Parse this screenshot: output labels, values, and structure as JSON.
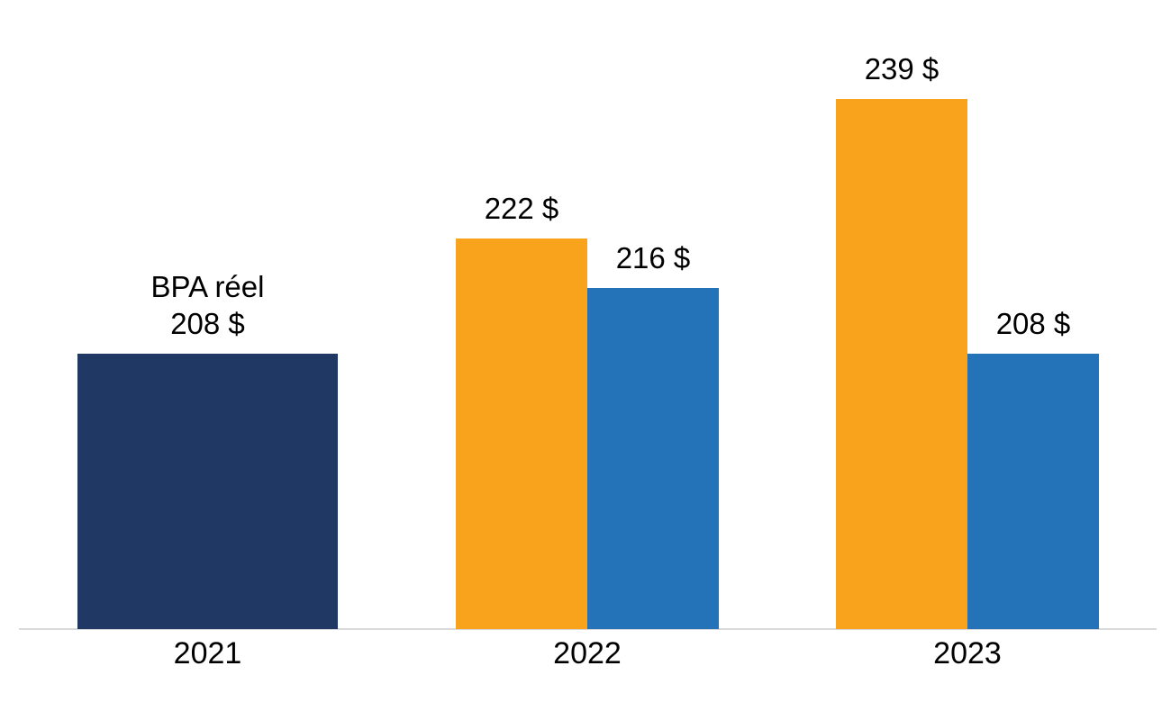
{
  "chart_data": {
    "type": "bar",
    "title": "",
    "categories": [
      "2021",
      "2022",
      "2023"
    ],
    "series": [
      {
        "name": "bpa-reel",
        "color": "#1f3864",
        "values": [
          208,
          null,
          null
        ]
      },
      {
        "name": "estimation-orange",
        "color": "#f9a21c",
        "values": [
          null,
          222,
          239
        ]
      },
      {
        "name": "estimation-bleu",
        "color": "#2472b8",
        "values": [
          null,
          216,
          208
        ]
      }
    ],
    "bars": [
      {
        "category": "2021",
        "series": "bpa-reel",
        "value": 208,
        "color": "#1f3864",
        "label_lines": [
          "BPA réel",
          "208 $"
        ]
      },
      {
        "category": "2022",
        "series": "estimation-orange",
        "value": 222,
        "color": "#f9a21c",
        "label_lines": [
          "222 $"
        ]
      },
      {
        "category": "2022",
        "series": "estimation-bleu",
        "value": 216,
        "color": "#2472b8",
        "label_lines": [
          "216 $"
        ]
      },
      {
        "category": "2023",
        "series": "estimation-orange",
        "value": 239,
        "color": "#f9a21c",
        "label_lines": [
          "239 $"
        ]
      },
      {
        "category": "2023",
        "series": "estimation-bleu",
        "value": 208,
        "color": "#2472b8",
        "label_lines": [
          "208 $"
        ]
      }
    ],
    "annotation_text": "BPA réel",
    "currency_suffix": " $",
    "axis": {
      "y_hidden": true,
      "ylim": [
        174,
        245
      ],
      "grid": false,
      "legend": "none",
      "baseline_color": "#d9d9d9",
      "text_color": "#000000"
    }
  }
}
